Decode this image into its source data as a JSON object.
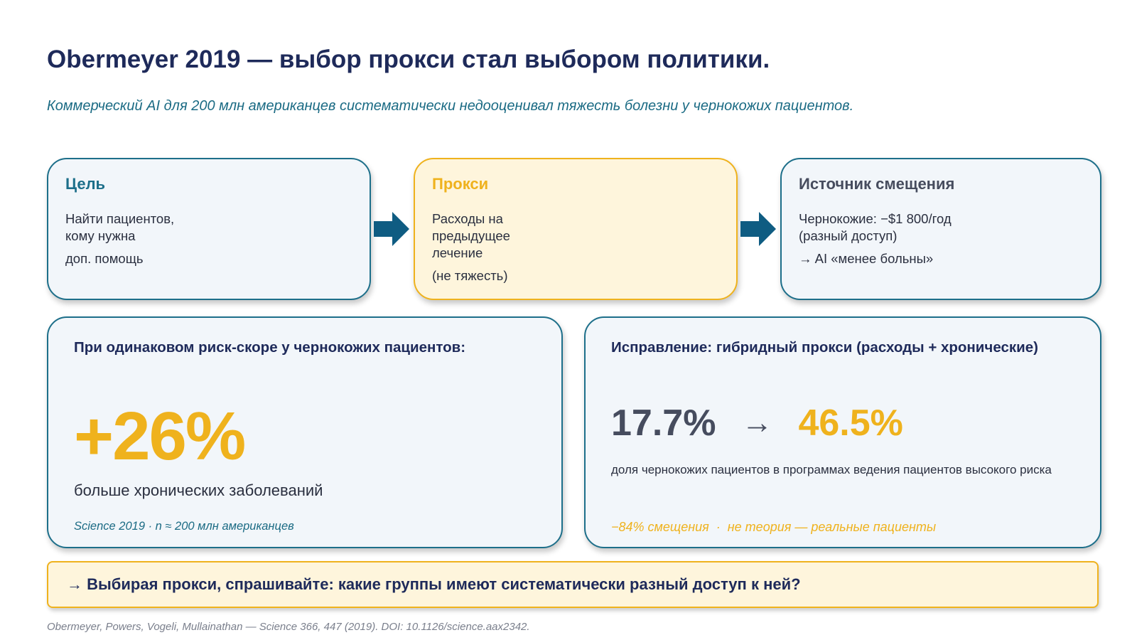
{
  "title": "Obermeyer 2019 — выбор прокси стал выбором политики.",
  "subtitle": "Коммерческий AI для 200 млн американцев систематически недооценивал тяжесть болезни у чернокожих пациентов.",
  "flow": {
    "goal": {
      "heading": "Цель",
      "lines": [
        "Найти пациентов,",
        "кому нужна",
        "доп. помощь"
      ]
    },
    "proxy": {
      "heading": "Прокси",
      "lines": [
        "Расходы на",
        "предыдущее",
        "лечение",
        "(не тяжесть)"
      ]
    },
    "bias": {
      "heading": "Источник смещения",
      "lines": [
        "Чернокожие: −$1 800/год",
        "(разный доступ)",
        "→ AI «менее больны»"
      ]
    }
  },
  "colors": {
    "navy": "#1e2a5a",
    "teal": "#1b6b84",
    "gold": "#efb21d",
    "slate": "#464c5e"
  },
  "icons": {
    "flow_arrow": "arrow-right-icon"
  },
  "risk": {
    "heading": "При одинаковом риск-скоре у чернокожих пациентов:",
    "value": "+26%",
    "caption": "больше хронических заболеваний",
    "note": "Science 2019 · n ≈ 200 млн американцев"
  },
  "fix": {
    "heading": "Исправление: гибридный прокси (расходы + хронические)",
    "from": "17.7%",
    "arrow": "→",
    "to": "46.5%",
    "description": "доля чернокожих пациентов в программах ведения пациентов высокого риска",
    "note_a": "−84% смещения",
    "note_sep": "·",
    "note_b": "не теория — реальные пациенты"
  },
  "banner": "→ Выбирая прокси, спрашивайте: какие группы имеют систематически разный доступ к ней?",
  "footer": "Obermeyer, Powers, Vogeli, Mullainathan — Science 366, 447 (2019). DOI: 10.1126/science.aax2342."
}
